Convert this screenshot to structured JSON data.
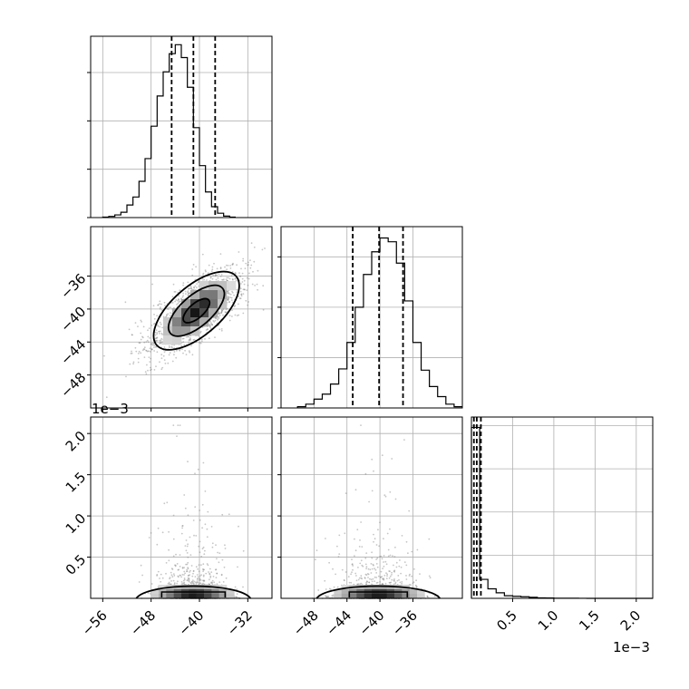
{
  "figure": {
    "offset_text_y": "1e−3",
    "offset_text_x": "1e−3"
  },
  "colors": {
    "frame": "#000000",
    "grid": "#b0b0b0",
    "hist_line": "#000000",
    "quantile_line": "#000000",
    "scatter": "#808080",
    "contour": "#000000"
  },
  "chart_data": [
    {
      "type": "histogram",
      "panel": "param1-marginal",
      "x_range": [
        -58,
        -28
      ],
      "bin_width": 1,
      "bins_start": -56,
      "counts": [
        0.2,
        0.5,
        1.1,
        2.2,
        5.2,
        8.5,
        15.0,
        24.4,
        37.8,
        50.3,
        60.3,
        67.8,
        71.5,
        66.2,
        53.9,
        37.2,
        21.5,
        10.6,
        4.5,
        1.8,
        0.6,
        0.2
      ],
      "quantiles": [
        -44.6,
        -41.0,
        -37.4
      ],
      "y_ticks": 3,
      "grid": true
    },
    {
      "type": "scatter",
      "panel": "param1-vs-param2",
      "x_range": [
        -58,
        -28
      ],
      "y_range": [
        -52,
        -30
      ],
      "y_tick_labels": [
        "−36",
        "−40",
        "−44",
        "−48"
      ],
      "y_tick_values": [
        -36,
        -40,
        -44,
        -48
      ],
      "center": [
        -40.5,
        -40.2
      ],
      "contours": "2D density contours, nested ellipses",
      "grid": true
    },
    {
      "type": "histogram",
      "panel": "param2-marginal",
      "x_range": [
        -52,
        -30
      ],
      "bin_width": 1,
      "bins_start": -50,
      "counts": [
        0.5,
        1.5,
        3.5,
        5.5,
        9.5,
        15.5,
        26.0,
        40.0,
        53.0,
        62.0,
        67.5,
        66.0,
        57.5,
        42.5,
        26.0,
        15.0,
        8.5,
        4.5,
        1.5,
        0.5
      ],
      "quantiles": [
        -43.3,
        -40.1,
        -37.2
      ],
      "y_ticks": 3,
      "grid": true
    },
    {
      "type": "scatter",
      "panel": "param1-vs-param3",
      "x_range": [
        -58,
        -28
      ],
      "y_range": [
        0,
        2.2
      ],
      "x_tick_labels": [
        "−56",
        "−48",
        "−40",
        "−32"
      ],
      "x_tick_values": [
        -56,
        -48,
        -40,
        -32
      ],
      "y_tick_labels": [
        "0.5",
        "1.0",
        "1.5",
        "2.0"
      ],
      "y_tick_values": [
        0.5,
        1.0,
        1.5,
        2.0
      ],
      "y_scale": "1e-3",
      "grid": true
    },
    {
      "type": "scatter",
      "panel": "param2-vs-param3",
      "x_range": [
        -52,
        -30
      ],
      "y_range": [
        0,
        2.2
      ],
      "x_tick_labels": [
        "−48",
        "−44",
        "−40",
        "−36"
      ],
      "x_tick_values": [
        -48,
        -44,
        -40,
        -36
      ],
      "grid": true
    },
    {
      "type": "histogram",
      "panel": "param3-marginal",
      "x_range": [
        0,
        2.2
      ],
      "bins_start": 0.0,
      "bin_width": 0.1,
      "counts": [
        99,
        11,
        5.5,
        3.2,
        1.5,
        1.2,
        0.9,
        0.6,
        0.3,
        0.2,
        0.1,
        0.1,
        0.05,
        0.03,
        0,
        0,
        0,
        0,
        0,
        0,
        0,
        0
      ],
      "quantiles": [
        0.03,
        0.065,
        0.115
      ],
      "x_tick_labels": [
        "0.5",
        "1.0",
        "1.5",
        "2.0"
      ],
      "x_tick_values": [
        0.5,
        1.0,
        1.5,
        2.0
      ],
      "x_scale": "1e-3",
      "grid": true
    }
  ]
}
